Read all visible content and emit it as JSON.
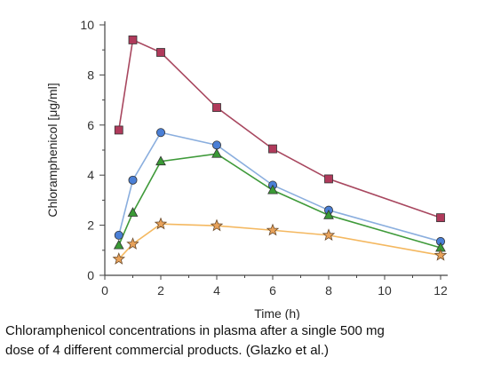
{
  "chart_data": {
    "type": "line",
    "title": "",
    "xlabel": "Time  (h)",
    "ylabel": "Chloramphenicol [μg/ml]",
    "xlim": [
      0,
      12
    ],
    "ylim": [
      0,
      10
    ],
    "xticks": [
      0,
      2,
      4,
      6,
      8,
      10,
      12
    ],
    "yticks": [
      0,
      2,
      4,
      6,
      8,
      10
    ],
    "grid": false,
    "legend": "none",
    "series": [
      {
        "marker": "square",
        "color": "#a8475f",
        "marker_fill": "#b03a5b",
        "x": [
          0.5,
          1,
          2,
          4,
          6,
          8,
          12
        ],
        "y": [
          5.8,
          9.4,
          8.9,
          6.7,
          5.05,
          3.85,
          2.3
        ]
      },
      {
        "marker": "circle",
        "color": "#8aaede",
        "marker_fill": "#4a7fd6",
        "x": [
          0.5,
          1,
          2,
          4,
          6,
          8,
          12
        ],
        "y": [
          1.6,
          3.8,
          5.7,
          5.2,
          3.6,
          2.6,
          1.35
        ]
      },
      {
        "marker": "triangle",
        "color": "#3f9a3a",
        "marker_fill": "#3a9a35",
        "x": [
          0.5,
          1,
          2,
          4,
          6,
          8,
          12
        ],
        "y": [
          1.2,
          2.5,
          4.55,
          4.85,
          3.4,
          2.4,
          1.1
        ]
      },
      {
        "marker": "star",
        "color": "#f4b860",
        "marker_fill": "#e8a25a",
        "x": [
          0.5,
          1,
          2,
          4,
          6,
          8,
          12
        ],
        "y": [
          0.65,
          1.25,
          2.05,
          1.98,
          1.8,
          1.6,
          0.8
        ]
      }
    ]
  },
  "caption": {
    "line1": "Chloramphenicol concentrations in plasma after a single 500 mg",
    "line2": "dose of 4 different commercial products. (Glazko et al.)"
  }
}
